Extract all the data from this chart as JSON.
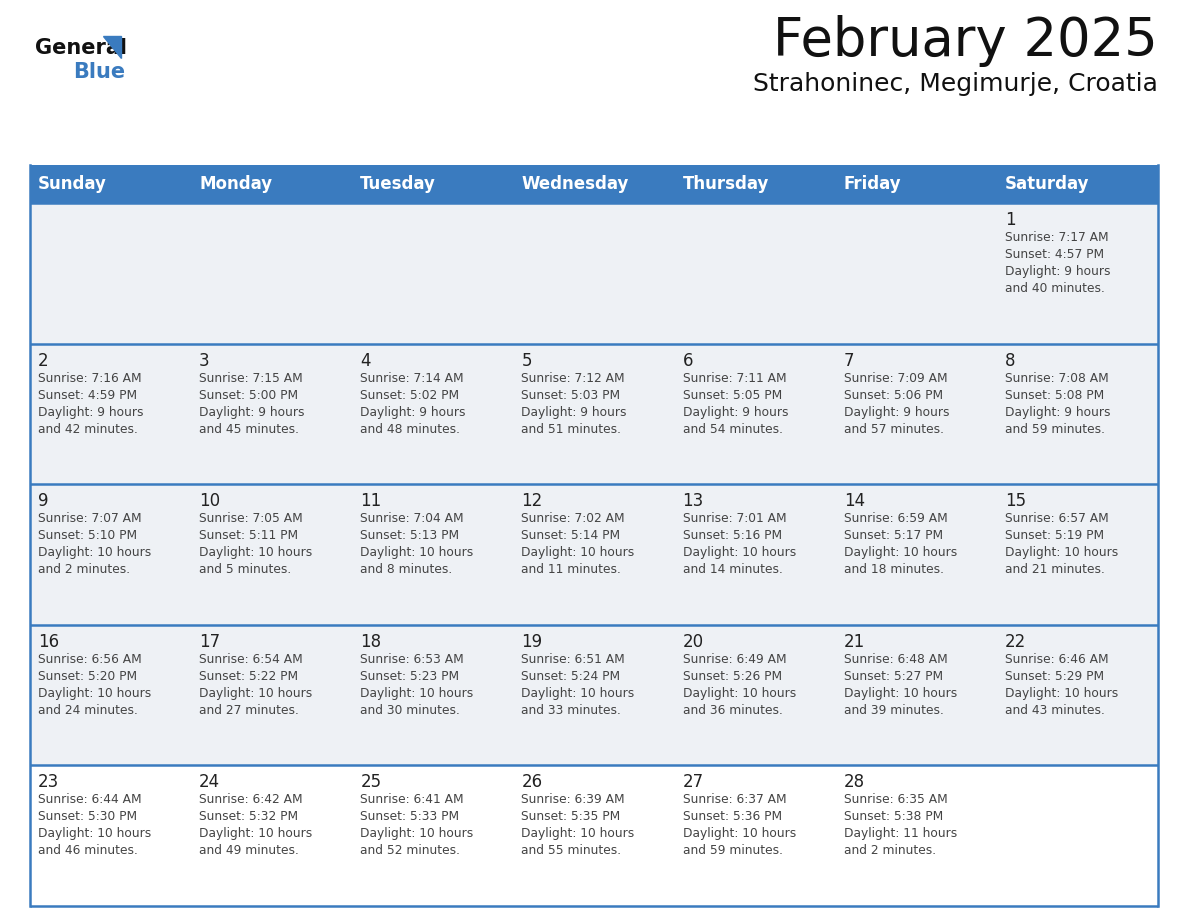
{
  "title": "February 2025",
  "subtitle": "Strahoninec, Megimurje, Croatia",
  "days_of_week": [
    "Sunday",
    "Monday",
    "Tuesday",
    "Wednesday",
    "Thursday",
    "Friday",
    "Saturday"
  ],
  "header_bg": "#3a7bbf",
  "header_text": "#ffffff",
  "row_bg_gray": "#eef1f5",
  "row_bg_white": "#ffffff",
  "grid_line_color": "#3a7bbf",
  "day_number_color": "#222222",
  "info_text_color": "#444444",
  "title_color": "#111111",
  "subtitle_color": "#111111",
  "logo_general_color": "#111111",
  "logo_blue_color": "#3a7bbf",
  "weeks": [
    {
      "bg": "gray",
      "days": [
        {
          "date": null,
          "info": null
        },
        {
          "date": null,
          "info": null
        },
        {
          "date": null,
          "info": null
        },
        {
          "date": null,
          "info": null
        },
        {
          "date": null,
          "info": null
        },
        {
          "date": null,
          "info": null
        },
        {
          "date": 1,
          "info": "Sunrise: 7:17 AM\nSunset: 4:57 PM\nDaylight: 9 hours\nand 40 minutes."
        }
      ]
    },
    {
      "bg": "gray",
      "days": [
        {
          "date": 2,
          "info": "Sunrise: 7:16 AM\nSunset: 4:59 PM\nDaylight: 9 hours\nand 42 minutes."
        },
        {
          "date": 3,
          "info": "Sunrise: 7:15 AM\nSunset: 5:00 PM\nDaylight: 9 hours\nand 45 minutes."
        },
        {
          "date": 4,
          "info": "Sunrise: 7:14 AM\nSunset: 5:02 PM\nDaylight: 9 hours\nand 48 minutes."
        },
        {
          "date": 5,
          "info": "Sunrise: 7:12 AM\nSunset: 5:03 PM\nDaylight: 9 hours\nand 51 minutes."
        },
        {
          "date": 6,
          "info": "Sunrise: 7:11 AM\nSunset: 5:05 PM\nDaylight: 9 hours\nand 54 minutes."
        },
        {
          "date": 7,
          "info": "Sunrise: 7:09 AM\nSunset: 5:06 PM\nDaylight: 9 hours\nand 57 minutes."
        },
        {
          "date": 8,
          "info": "Sunrise: 7:08 AM\nSunset: 5:08 PM\nDaylight: 9 hours\nand 59 minutes."
        }
      ]
    },
    {
      "bg": "gray",
      "days": [
        {
          "date": 9,
          "info": "Sunrise: 7:07 AM\nSunset: 5:10 PM\nDaylight: 10 hours\nand 2 minutes."
        },
        {
          "date": 10,
          "info": "Sunrise: 7:05 AM\nSunset: 5:11 PM\nDaylight: 10 hours\nand 5 minutes."
        },
        {
          "date": 11,
          "info": "Sunrise: 7:04 AM\nSunset: 5:13 PM\nDaylight: 10 hours\nand 8 minutes."
        },
        {
          "date": 12,
          "info": "Sunrise: 7:02 AM\nSunset: 5:14 PM\nDaylight: 10 hours\nand 11 minutes."
        },
        {
          "date": 13,
          "info": "Sunrise: 7:01 AM\nSunset: 5:16 PM\nDaylight: 10 hours\nand 14 minutes."
        },
        {
          "date": 14,
          "info": "Sunrise: 6:59 AM\nSunset: 5:17 PM\nDaylight: 10 hours\nand 18 minutes."
        },
        {
          "date": 15,
          "info": "Sunrise: 6:57 AM\nSunset: 5:19 PM\nDaylight: 10 hours\nand 21 minutes."
        }
      ]
    },
    {
      "bg": "gray",
      "days": [
        {
          "date": 16,
          "info": "Sunrise: 6:56 AM\nSunset: 5:20 PM\nDaylight: 10 hours\nand 24 minutes."
        },
        {
          "date": 17,
          "info": "Sunrise: 6:54 AM\nSunset: 5:22 PM\nDaylight: 10 hours\nand 27 minutes."
        },
        {
          "date": 18,
          "info": "Sunrise: 6:53 AM\nSunset: 5:23 PM\nDaylight: 10 hours\nand 30 minutes."
        },
        {
          "date": 19,
          "info": "Sunrise: 6:51 AM\nSunset: 5:24 PM\nDaylight: 10 hours\nand 33 minutes."
        },
        {
          "date": 20,
          "info": "Sunrise: 6:49 AM\nSunset: 5:26 PM\nDaylight: 10 hours\nand 36 minutes."
        },
        {
          "date": 21,
          "info": "Sunrise: 6:48 AM\nSunset: 5:27 PM\nDaylight: 10 hours\nand 39 minutes."
        },
        {
          "date": 22,
          "info": "Sunrise: 6:46 AM\nSunset: 5:29 PM\nDaylight: 10 hours\nand 43 minutes."
        }
      ]
    },
    {
      "bg": "white",
      "days": [
        {
          "date": 23,
          "info": "Sunrise: 6:44 AM\nSunset: 5:30 PM\nDaylight: 10 hours\nand 46 minutes."
        },
        {
          "date": 24,
          "info": "Sunrise: 6:42 AM\nSunset: 5:32 PM\nDaylight: 10 hours\nand 49 minutes."
        },
        {
          "date": 25,
          "info": "Sunrise: 6:41 AM\nSunset: 5:33 PM\nDaylight: 10 hours\nand 52 minutes."
        },
        {
          "date": 26,
          "info": "Sunrise: 6:39 AM\nSunset: 5:35 PM\nDaylight: 10 hours\nand 55 minutes."
        },
        {
          "date": 27,
          "info": "Sunrise: 6:37 AM\nSunset: 5:36 PM\nDaylight: 10 hours\nand 59 minutes."
        },
        {
          "date": 28,
          "info": "Sunrise: 6:35 AM\nSunset: 5:38 PM\nDaylight: 11 hours\nand 2 minutes."
        },
        {
          "date": null,
          "info": null
        }
      ]
    }
  ]
}
